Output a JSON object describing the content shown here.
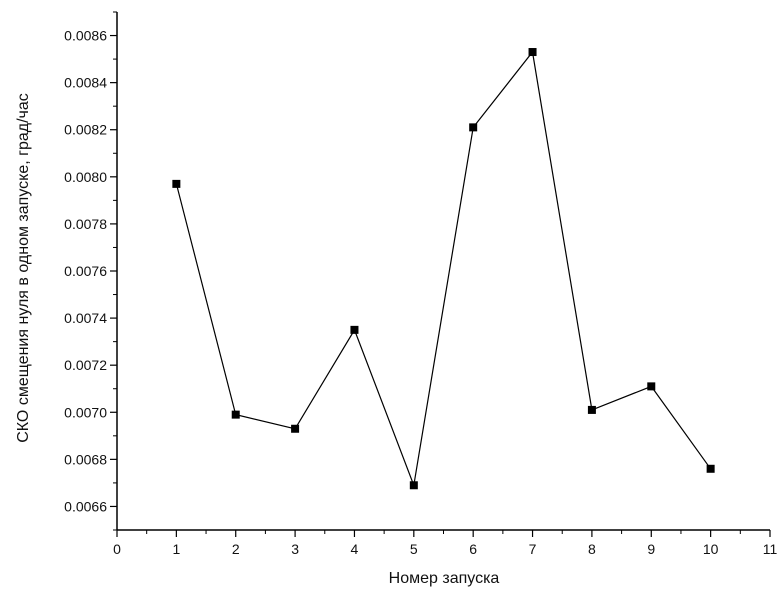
{
  "chart_data": {
    "type": "line",
    "title": "",
    "xlabel": "Номер запуска",
    "ylabel": "СКО смещения нуля в одном запуске, град/час",
    "xlim": [
      0,
      11
    ],
    "ylim": [
      0.0065,
      0.0087
    ],
    "xticks": [
      "0",
      "1",
      "2",
      "3",
      "4",
      "5",
      "6",
      "7",
      "8",
      "9",
      "10",
      "11"
    ],
    "yticks": [
      "0.0066",
      "0.0068",
      "0.0070",
      "0.0072",
      "0.0074",
      "0.0076",
      "0.0078",
      "0.0080",
      "0.0082",
      "0.0084",
      "0.0086"
    ],
    "grid": false,
    "legend": "none",
    "colors": {
      "line": "#000000",
      "marker": "#000000",
      "axis": "#000000"
    },
    "series": [
      {
        "marker": "square",
        "x": [
          1,
          2,
          3,
          4,
          5,
          6,
          7,
          8,
          9,
          10
        ],
        "y": [
          0.00797,
          0.00699,
          0.00693,
          0.00735,
          0.00669,
          0.00821,
          0.00853,
          0.00701,
          0.00711,
          0.00676
        ]
      }
    ]
  }
}
